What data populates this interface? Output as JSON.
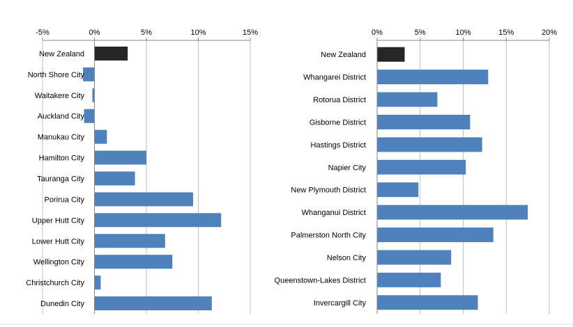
{
  "colors": {
    "bar": "#4f81bd",
    "highlight": "#262626",
    "grid": "#bfbfbf",
    "axis": "#868686"
  },
  "chart_data": [
    {
      "type": "bar",
      "orientation": "horizontal",
      "categories": [
        "New Zealand",
        "North Shore City",
        "Waitakere City",
        "Auckland City",
        "Manukau City",
        "Hamilton City",
        "Tauranga City",
        "Porirua City",
        "Upper Hutt City",
        "Lower Hutt City",
        "Wellington City",
        "Christchurch City",
        "Dunedin City"
      ],
      "values": [
        3.2,
        -1.1,
        -0.2,
        -1.0,
        1.2,
        5.0,
        3.9,
        9.5,
        12.2,
        6.8,
        7.5,
        0.6,
        11.3
      ],
      "highlight_index": 0,
      "xlim": [
        -5,
        15
      ],
      "xticks": [
        "-5%",
        "0%",
        "5%",
        "10%",
        "15%"
      ],
      "tick_values": [
        -5,
        0,
        5,
        10,
        15
      ],
      "axis_position": "top",
      "grid": true
    },
    {
      "type": "bar",
      "orientation": "horizontal",
      "categories": [
        "New Zealand",
        "Whangarei District",
        "Rotorua District",
        "Gisborne District",
        "Hastings District",
        "Napier City",
        "New Plymouth District",
        "Whanganui District",
        "Palmerston North City",
        "Nelson City",
        "Queenstown-Lakes District",
        "Invercargill City"
      ],
      "values": [
        3.2,
        12.9,
        7.0,
        10.8,
        12.2,
        10.3,
        4.8,
        17.5,
        13.5,
        8.6,
        7.4,
        11.7
      ],
      "highlight_index": 0,
      "xlim": [
        0,
        20
      ],
      "xticks": [
        "0%",
        "5%",
        "10%",
        "15%",
        "20%"
      ],
      "tick_values": [
        0,
        5,
        10,
        15,
        20
      ],
      "axis_position": "top",
      "grid": true
    }
  ]
}
